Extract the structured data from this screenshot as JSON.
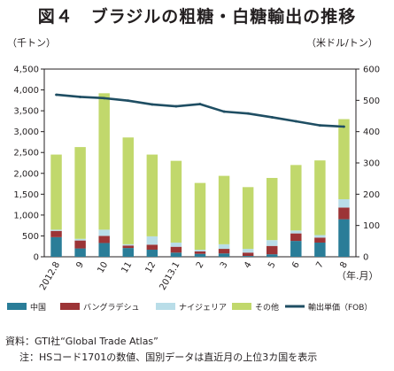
{
  "title": "図４　ブラジルの粗糖・白糖輸出の推移",
  "source": "資料：GTI社“Global Trade Atlas”",
  "note": "注：HSコード1701の数値、国別データは直近月の上位3カ国を表示",
  "colors": {
    "china": "#2a7d98",
    "bangladesh": "#9c3436",
    "nigeria": "#b9dde8",
    "other": "#c1d86c",
    "line": "#1f4e63"
  },
  "chart_data": {
    "type": "bar",
    "stacked": true,
    "categories": [
      "2012.8",
      "9",
      "10",
      "11",
      "12",
      "2013.1",
      "2",
      "3",
      "4",
      "5",
      "6",
      "7",
      "8"
    ],
    "series": [
      {
        "name": "中国",
        "values": [
          470,
          200,
          330,
          210,
          170,
          100,
          70,
          80,
          20,
          60,
          380,
          340,
          900
        ]
      },
      {
        "name": "バングラデシュ",
        "values": [
          150,
          190,
          170,
          60,
          120,
          140,
          60,
          110,
          80,
          200,
          180,
          120,
          280
        ]
      },
      {
        "name": "ナイジェリア",
        "values": [
          30,
          40,
          150,
          30,
          200,
          100,
          40,
          110,
          90,
          140,
          70,
          60,
          200
        ]
      },
      {
        "name": "その他",
        "values": [
          1800,
          2200,
          3270,
          2560,
          1960,
          1960,
          1600,
          1640,
          1480,
          1490,
          1570,
          1790,
          1920
        ]
      }
    ],
    "line": {
      "name": "輸出単価（FOB）",
      "axis": "right",
      "values": [
        518,
        511,
        507,
        499,
        487,
        481,
        488,
        464,
        458,
        446,
        433,
        420,
        416
      ]
    },
    "ylabel_left": "（千トン）",
    "ylabel_right": "（米ドル/トン）",
    "xlabel": "（年.月）",
    "ylim_left": [
      0,
      4500
    ],
    "ylim_right": [
      0,
      600
    ],
    "yticks_left": [
      "0",
      "500",
      "1,000",
      "1,500",
      "2,000",
      "2,500",
      "3,000",
      "3,500",
      "4,000",
      "4,500"
    ],
    "yticks_right": [
      "0",
      "100",
      "200",
      "300",
      "400",
      "500",
      "600"
    ],
    "grid": false,
    "legend_position": "bottom"
  }
}
